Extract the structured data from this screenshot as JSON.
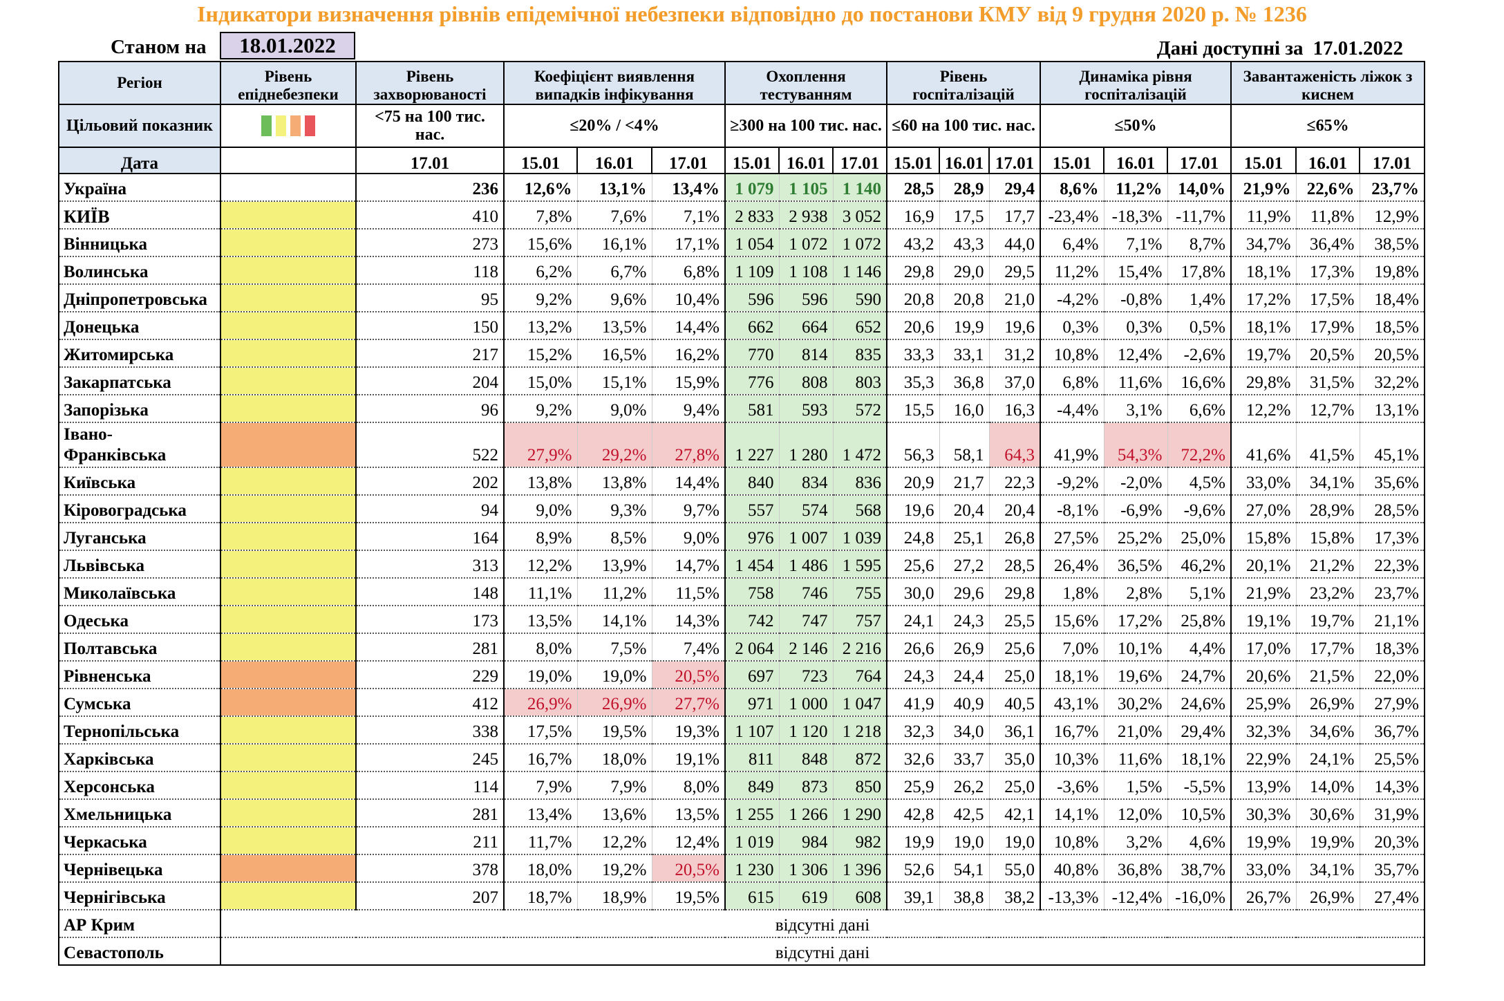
{
  "title": "Індикатори визначення рівнів епідемічної небезпеки відповідно до постанови КМУ від 9 грудня 2020 р. № 1236",
  "as_of_label": "Станом на",
  "as_of_date": "18.01.2022",
  "available_label": "Дані доступні за",
  "available_date": "17.01.2022",
  "headers": {
    "region": "Регіон",
    "level": "Рівень епіднебезпеки",
    "incidence": "Рівень захворюваності",
    "detection": "Коефіцієнт виявлення випадків інфікування",
    "testing": "Охоплення тестуванням",
    "hospitalization": "Рівень госпіталізацій",
    "hosp_dynamics": "Динаміка рівня госпіталізацій",
    "oxygen": "Завантаженість ліжок з киснем"
  },
  "target_row": {
    "label": "Цільовий показник",
    "legend_colors": [
      "#6DBE5A",
      "#F4F27C",
      "#F5AD75",
      "#E8555A"
    ],
    "incidence": "<75 на 100 тис. нас.",
    "detection": "≤20% / <4%",
    "testing": "≥300 на 100 тис. нас.",
    "hospitalization": "≤60 на 100 тис. нас.",
    "hosp_dynamics": "≤50%",
    "oxygen": "≤65%"
  },
  "date_row": {
    "label": "Дата",
    "incidence": "17.01",
    "group_dates": [
      "15.01",
      "16.01",
      "17.01"
    ]
  },
  "rows": [
    {
      "region": "Україна",
      "level": "",
      "inc": "236",
      "det": [
        "12,6%",
        "13,1%",
        "13,4%"
      ],
      "test": [
        "1 079",
        "1 105",
        "1 140"
      ],
      "hosp": [
        "28,5",
        "28,9",
        "29,4"
      ],
      "dyn": [
        "8,6%",
        "11,2%",
        "14,0%"
      ],
      "oxy": [
        "21,9%",
        "22,6%",
        "23,7%"
      ],
      "red": []
    },
    {
      "region": "КИЇВ",
      "level": "yellow",
      "inc": "410",
      "det": [
        "7,8%",
        "7,6%",
        "7,1%"
      ],
      "test": [
        "2 833",
        "2 938",
        "3 052"
      ],
      "hosp": [
        "16,9",
        "17,5",
        "17,7"
      ],
      "dyn": [
        "-23,4%",
        "-18,3%",
        "-11,7%"
      ],
      "oxy": [
        "11,9%",
        "11,8%",
        "12,9%"
      ],
      "red": []
    },
    {
      "region": "Вінницька",
      "level": "yellow",
      "inc": "273",
      "det": [
        "15,6%",
        "16,1%",
        "17,1%"
      ],
      "test": [
        "1 054",
        "1 072",
        "1 072"
      ],
      "hosp": [
        "43,2",
        "43,3",
        "44,0"
      ],
      "dyn": [
        "6,4%",
        "7,1%",
        "8,7%"
      ],
      "oxy": [
        "34,7%",
        "36,4%",
        "38,5%"
      ],
      "red": []
    },
    {
      "region": "Волинська",
      "level": "yellow",
      "inc": "118",
      "det": [
        "6,2%",
        "6,7%",
        "6,8%"
      ],
      "test": [
        "1 109",
        "1 108",
        "1 146"
      ],
      "hosp": [
        "29,8",
        "29,0",
        "29,5"
      ],
      "dyn": [
        "11,2%",
        "15,4%",
        "17,8%"
      ],
      "oxy": [
        "18,1%",
        "17,3%",
        "19,8%"
      ],
      "red": []
    },
    {
      "region": "Дніпропетровська",
      "level": "yellow",
      "inc": "95",
      "det": [
        "9,2%",
        "9,6%",
        "10,4%"
      ],
      "test": [
        "596",
        "596",
        "590"
      ],
      "hosp": [
        "20,8",
        "20,8",
        "21,0"
      ],
      "dyn": [
        "-4,2%",
        "-0,8%",
        "1,4%"
      ],
      "oxy": [
        "17,2%",
        "17,5%",
        "18,4%"
      ],
      "red": []
    },
    {
      "region": "Донецька",
      "level": "yellow",
      "inc": "150",
      "det": [
        "13,2%",
        "13,5%",
        "14,4%"
      ],
      "test": [
        "662",
        "664",
        "652"
      ],
      "hosp": [
        "20,6",
        "19,9",
        "19,6"
      ],
      "dyn": [
        "0,3%",
        "0,3%",
        "0,5%"
      ],
      "oxy": [
        "18,1%",
        "17,9%",
        "18,5%"
      ],
      "red": []
    },
    {
      "region": "Житомирська",
      "level": "yellow",
      "inc": "217",
      "det": [
        "15,2%",
        "16,5%",
        "16,2%"
      ],
      "test": [
        "770",
        "814",
        "835"
      ],
      "hosp": [
        "33,3",
        "33,1",
        "31,2"
      ],
      "dyn": [
        "10,8%",
        "12,4%",
        "-2,6%"
      ],
      "oxy": [
        "19,7%",
        "20,5%",
        "20,5%"
      ],
      "red": []
    },
    {
      "region": "Закарпатська",
      "level": "yellow",
      "inc": "204",
      "det": [
        "15,0%",
        "15,1%",
        "15,9%"
      ],
      "test": [
        "776",
        "808",
        "803"
      ],
      "hosp": [
        "35,3",
        "36,8",
        "37,0"
      ],
      "dyn": [
        "6,8%",
        "11,6%",
        "16,6%"
      ],
      "oxy": [
        "29,8%",
        "31,5%",
        "32,2%"
      ],
      "red": []
    },
    {
      "region": "Запорізька",
      "level": "yellow",
      "inc": "96",
      "det": [
        "9,2%",
        "9,0%",
        "9,4%"
      ],
      "test": [
        "581",
        "593",
        "572"
      ],
      "hosp": [
        "15,5",
        "16,0",
        "16,3"
      ],
      "dyn": [
        "-4,4%",
        "3,1%",
        "6,6%"
      ],
      "oxy": [
        "12,2%",
        "12,7%",
        "13,1%"
      ],
      "red": []
    },
    {
      "region": "Івано-Франківська",
      "level": "orange",
      "inc": "522",
      "det": [
        "27,9%",
        "29,2%",
        "27,8%"
      ],
      "test": [
        "1 227",
        "1 280",
        "1 472"
      ],
      "hosp": [
        "56,3",
        "58,1",
        "64,3"
      ],
      "dyn": [
        "41,9%",
        "54,3%",
        "72,2%"
      ],
      "oxy": [
        "41,6%",
        "41,5%",
        "45,1%"
      ],
      "red": [
        "det0",
        "det1",
        "det2",
        "hosp2",
        "dyn1",
        "dyn2"
      ]
    },
    {
      "region": "Київська",
      "level": "yellow",
      "inc": "202",
      "det": [
        "13,8%",
        "13,8%",
        "14,4%"
      ],
      "test": [
        "840",
        "834",
        "836"
      ],
      "hosp": [
        "20,9",
        "21,7",
        "22,3"
      ],
      "dyn": [
        "-9,2%",
        "-2,0%",
        "4,5%"
      ],
      "oxy": [
        "33,0%",
        "34,1%",
        "35,6%"
      ],
      "red": []
    },
    {
      "region": "Кіровоградська",
      "level": "yellow",
      "inc": "94",
      "det": [
        "9,0%",
        "9,3%",
        "9,7%"
      ],
      "test": [
        "557",
        "574",
        "568"
      ],
      "hosp": [
        "19,6",
        "20,4",
        "20,4"
      ],
      "dyn": [
        "-8,1%",
        "-6,9%",
        "-9,6%"
      ],
      "oxy": [
        "27,0%",
        "28,9%",
        "28,5%"
      ],
      "red": []
    },
    {
      "region": "Луганська",
      "level": "yellow",
      "inc": "164",
      "det": [
        "8,9%",
        "8,5%",
        "9,0%"
      ],
      "test": [
        "976",
        "1 007",
        "1 039"
      ],
      "hosp": [
        "24,8",
        "25,1",
        "26,8"
      ],
      "dyn": [
        "27,5%",
        "25,2%",
        "25,0%"
      ],
      "oxy": [
        "15,8%",
        "15,8%",
        "17,3%"
      ],
      "red": []
    },
    {
      "region": "Львівська",
      "level": "yellow",
      "inc": "313",
      "det": [
        "12,2%",
        "13,9%",
        "14,7%"
      ],
      "test": [
        "1 454",
        "1 486",
        "1 595"
      ],
      "hosp": [
        "25,6",
        "27,2",
        "28,5"
      ],
      "dyn": [
        "26,4%",
        "36,5%",
        "46,2%"
      ],
      "oxy": [
        "20,1%",
        "21,2%",
        "22,3%"
      ],
      "red": []
    },
    {
      "region": "Миколаївська",
      "level": "yellow",
      "inc": "148",
      "det": [
        "11,1%",
        "11,2%",
        "11,5%"
      ],
      "test": [
        "758",
        "746",
        "755"
      ],
      "hosp": [
        "30,0",
        "29,6",
        "29,8"
      ],
      "dyn": [
        "1,8%",
        "2,8%",
        "5,1%"
      ],
      "oxy": [
        "21,9%",
        "23,2%",
        "23,7%"
      ],
      "red": []
    },
    {
      "region": "Одеська",
      "level": "yellow",
      "inc": "173",
      "det": [
        "13,5%",
        "14,1%",
        "14,3%"
      ],
      "test": [
        "742",
        "747",
        "757"
      ],
      "hosp": [
        "24,1",
        "24,3",
        "25,5"
      ],
      "dyn": [
        "15,6%",
        "17,2%",
        "25,8%"
      ],
      "oxy": [
        "19,1%",
        "19,7%",
        "21,1%"
      ],
      "red": []
    },
    {
      "region": "Полтавська",
      "level": "yellow",
      "inc": "281",
      "det": [
        "8,0%",
        "7,5%",
        "7,4%"
      ],
      "test": [
        "2 064",
        "2 146",
        "2 216"
      ],
      "hosp": [
        "26,6",
        "26,9",
        "25,6"
      ],
      "dyn": [
        "7,0%",
        "10,1%",
        "4,4%"
      ],
      "oxy": [
        "17,0%",
        "17,7%",
        "18,3%"
      ],
      "red": []
    },
    {
      "region": "Рівненська",
      "level": "orange",
      "inc": "229",
      "det": [
        "19,0%",
        "19,0%",
        "20,5%"
      ],
      "test": [
        "697",
        "723",
        "764"
      ],
      "hosp": [
        "24,3",
        "24,4",
        "25,0"
      ],
      "dyn": [
        "18,1%",
        "19,6%",
        "24,7%"
      ],
      "oxy": [
        "20,6%",
        "21,5%",
        "22,0%"
      ],
      "red": [
        "det2"
      ]
    },
    {
      "region": "Сумська",
      "level": "orange",
      "inc": "412",
      "det": [
        "26,9%",
        "26,9%",
        "27,7%"
      ],
      "test": [
        "971",
        "1 000",
        "1 047"
      ],
      "hosp": [
        "41,9",
        "40,9",
        "40,5"
      ],
      "dyn": [
        "43,1%",
        "30,2%",
        "24,6%"
      ],
      "oxy": [
        "25,9%",
        "26,9%",
        "27,9%"
      ],
      "red": [
        "det0",
        "det1",
        "det2"
      ]
    },
    {
      "region": "Тернопільська",
      "level": "yellow",
      "inc": "338",
      "det": [
        "17,5%",
        "19,5%",
        "19,3%"
      ],
      "test": [
        "1 107",
        "1 120",
        "1 218"
      ],
      "hosp": [
        "32,3",
        "34,0",
        "36,1"
      ],
      "dyn": [
        "16,7%",
        "21,0%",
        "29,4%"
      ],
      "oxy": [
        "32,3%",
        "34,6%",
        "36,7%"
      ],
      "red": []
    },
    {
      "region": "Харківська",
      "level": "yellow",
      "inc": "245",
      "det": [
        "16,7%",
        "18,0%",
        "19,1%"
      ],
      "test": [
        "811",
        "848",
        "872"
      ],
      "hosp": [
        "32,6",
        "33,7",
        "35,0"
      ],
      "dyn": [
        "10,3%",
        "11,6%",
        "18,1%"
      ],
      "oxy": [
        "22,9%",
        "24,1%",
        "25,5%"
      ],
      "red": []
    },
    {
      "region": "Херсонська",
      "level": "yellow",
      "inc": "114",
      "det": [
        "7,9%",
        "7,9%",
        "8,0%"
      ],
      "test": [
        "849",
        "873",
        "850"
      ],
      "hosp": [
        "25,9",
        "26,2",
        "25,0"
      ],
      "dyn": [
        "-3,6%",
        "1,5%",
        "-5,5%"
      ],
      "oxy": [
        "13,9%",
        "14,0%",
        "14,3%"
      ],
      "red": []
    },
    {
      "region": "Хмельницька",
      "level": "yellow",
      "inc": "281",
      "det": [
        "13,4%",
        "13,6%",
        "13,5%"
      ],
      "test": [
        "1 255",
        "1 266",
        "1 290"
      ],
      "hosp": [
        "42,8",
        "42,5",
        "42,1"
      ],
      "dyn": [
        "14,1%",
        "12,0%",
        "10,5%"
      ],
      "oxy": [
        "30,3%",
        "30,6%",
        "31,9%"
      ],
      "red": []
    },
    {
      "region": "Черкаська",
      "level": "yellow",
      "inc": "211",
      "det": [
        "11,7%",
        "12,2%",
        "12,4%"
      ],
      "test": [
        "1 019",
        "984",
        "982"
      ],
      "hosp": [
        "19,9",
        "19,0",
        "19,0"
      ],
      "dyn": [
        "10,8%",
        "3,2%",
        "4,6%"
      ],
      "oxy": [
        "19,9%",
        "19,9%",
        "20,3%"
      ],
      "red": []
    },
    {
      "region": "Чернівецька",
      "level": "orange",
      "inc": "378",
      "det": [
        "18,0%",
        "19,2%",
        "20,5%"
      ],
      "test": [
        "1 230",
        "1 306",
        "1 396"
      ],
      "hosp": [
        "52,6",
        "54,1",
        "55,0"
      ],
      "dyn": [
        "40,8%",
        "36,8%",
        "38,7%"
      ],
      "oxy": [
        "33,0%",
        "34,1%",
        "35,7%"
      ],
      "red": [
        "det2"
      ]
    },
    {
      "region": "Чернігівська",
      "level": "yellow",
      "inc": "207",
      "det": [
        "18,7%",
        "18,9%",
        "19,5%"
      ],
      "test": [
        "615",
        "619",
        "608"
      ],
      "hosp": [
        "39,1",
        "38,8",
        "38,2"
      ],
      "dyn": [
        "-13,3%",
        "-12,4%",
        "-16,0%"
      ],
      "oxy": [
        "26,7%",
        "26,9%",
        "27,4%"
      ],
      "red": []
    }
  ],
  "no_data_rows": [
    {
      "region": "АР Крим",
      "text": "відсутні дані"
    },
    {
      "region": "Севастополь",
      "text": "відсутні дані"
    }
  ]
}
